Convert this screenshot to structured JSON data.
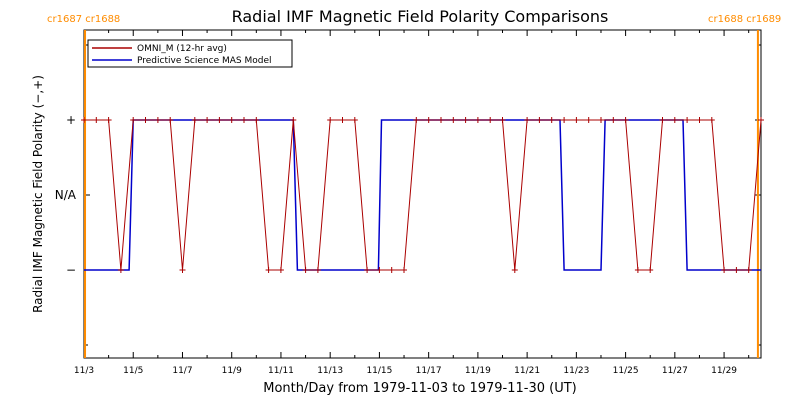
{
  "chart_data": {
    "type": "line",
    "title": "Radial IMF Magnetic Field Polarity Comparisons",
    "xlabel": "Month/Day from 1979-11-03 to 1979-11-30 (UT)",
    "ylabel": "Radial IMF Magnetic Field Polarity (−,+)",
    "xlim": [
      "1979-11-03",
      "1979-11-30 12:00"
    ],
    "x_tick_labels": [
      "11/3",
      "11/5",
      "11/7",
      "11/9",
      "11/11",
      "11/13",
      "11/15",
      "11/17",
      "11/19",
      "11/21",
      "11/23",
      "11/25",
      "11/27",
      "11/29"
    ],
    "y_tick_labels": [
      "−",
      "N/A",
      "+"
    ],
    "y_categories": {
      "-": -1,
      "N/A": 0,
      "+": 1
    },
    "grid": false,
    "legend": "top-left",
    "carrington_markers": [
      {
        "label": "cr1687 cr1688",
        "position": "left",
        "x": "1979-11-03 01:00"
      },
      {
        "label": "cr1688 cr1689",
        "position": "right",
        "x": "1979-11-30 09:00"
      }
    ],
    "series": [
      {
        "name": "OMNI_M (12-hr avg)",
        "color": "#aa0000",
        "x": [
          "1979-11-03 00:00",
          "1979-11-03 12:00",
          "1979-11-04 00:00",
          "1979-11-04 12:00",
          "1979-11-05 00:00",
          "1979-11-05 12:00",
          "1979-11-06 00:00",
          "1979-11-06 12:00",
          "1979-11-07 00:00",
          "1979-11-07 12:00",
          "1979-11-08 00:00",
          "1979-11-08 12:00",
          "1979-11-09 00:00",
          "1979-11-09 12:00",
          "1979-11-10 00:00",
          "1979-11-10 12:00",
          "1979-11-11 00:00",
          "1979-11-11 12:00",
          "1979-11-12 00:00",
          "1979-11-12 12:00",
          "1979-11-13 00:00",
          "1979-11-13 12:00",
          "1979-11-14 00:00",
          "1979-11-14 12:00",
          "1979-11-15 00:00",
          "1979-11-15 12:00",
          "1979-11-16 00:00",
          "1979-11-16 12:00",
          "1979-11-17 00:00",
          "1979-11-17 12:00",
          "1979-11-18 00:00",
          "1979-11-18 12:00",
          "1979-11-19 00:00",
          "1979-11-19 12:00",
          "1979-11-20 00:00",
          "1979-11-20 12:00",
          "1979-11-21 00:00",
          "1979-11-21 12:00",
          "1979-11-22 00:00",
          "1979-11-22 12:00",
          "1979-11-23 00:00",
          "1979-11-23 12:00",
          "1979-11-24 00:00",
          "1979-11-24 12:00",
          "1979-11-25 00:00",
          "1979-11-25 12:00",
          "1979-11-26 00:00",
          "1979-11-26 12:00",
          "1979-11-27 00:00",
          "1979-11-27 12:00",
          "1979-11-28 00:00",
          "1979-11-28 12:00",
          "1979-11-29 00:00",
          "1979-11-29 12:00",
          "1979-11-30 00:00",
          "1979-11-30 12:00"
        ],
        "values": [
          1,
          1,
          1,
          -1,
          1,
          1,
          1,
          1,
          -1,
          1,
          1,
          1,
          1,
          1,
          1,
          -1,
          -1,
          1,
          -1,
          -1,
          1,
          1,
          1,
          -1,
          -1,
          -1,
          -1,
          1,
          1,
          1,
          1,
          1,
          1,
          1,
          1,
          -1,
          1,
          1,
          1,
          1,
          1,
          1,
          1,
          1,
          1,
          -1,
          -1,
          1,
          1,
          1,
          1,
          1,
          -1,
          -1,
          -1,
          1
        ]
      },
      {
        "name": "Predictive Science MAS Model",
        "color": "#0000cc",
        "steps": [
          {
            "from": "1979-11-03 00:00",
            "to": "1979-11-04 20:00",
            "value": -1
          },
          {
            "from": "1979-11-05 00:00",
            "to": "1979-11-11 12:00",
            "value": 1
          },
          {
            "from": "1979-11-11 16:00",
            "to": "1979-11-14 23:00",
            "value": -1
          },
          {
            "from": "1979-11-15 02:00",
            "to": "1979-11-22 08:00",
            "value": 1
          },
          {
            "from": "1979-11-22 12:00",
            "to": "1979-11-24 00:00",
            "value": -1
          },
          {
            "from": "1979-11-24 04:00",
            "to": "1979-11-27 08:00",
            "value": 1
          },
          {
            "from": "1979-11-27 12:00",
            "to": "1979-11-30 12:00",
            "value": -1
          }
        ]
      }
    ]
  }
}
